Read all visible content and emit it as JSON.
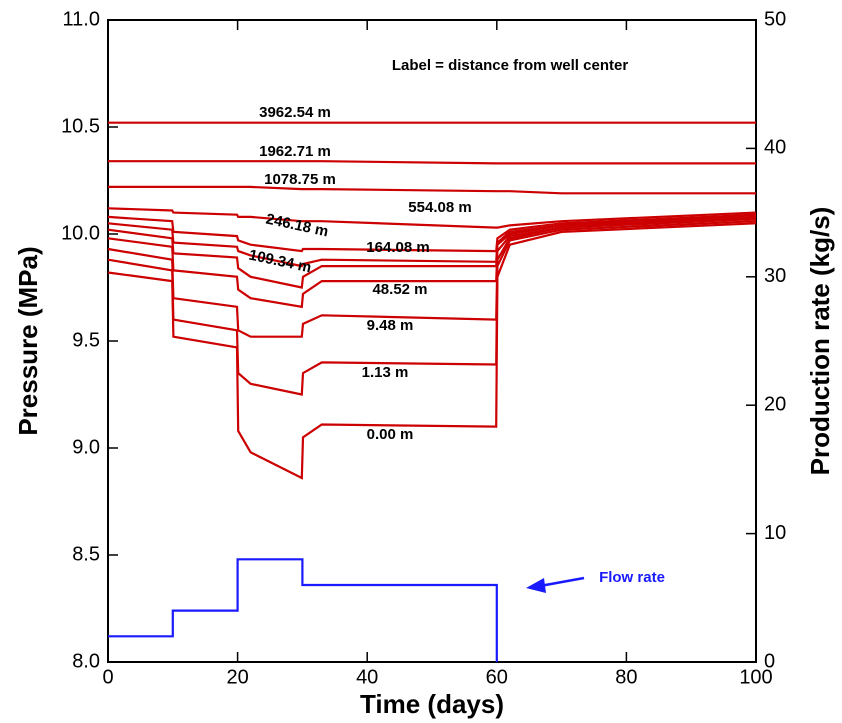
{
  "chart_data": {
    "type": "line",
    "xlabel": "Time (days)",
    "ylabel": "Pressure (MPa)",
    "y2label": "Production rate (kg/s)",
    "annotation": "Label = distance from well center",
    "xlim": [
      0,
      100
    ],
    "xticks": [
      0,
      20,
      40,
      60,
      80,
      100
    ],
    "ylim": [
      8,
      11
    ],
    "yticks": [
      {
        "value": 8,
        "label": "8.0"
      },
      {
        "value": 8.5,
        "label": "8.5"
      },
      {
        "value": 9,
        "label": "9.0"
      },
      {
        "value": 9.5,
        "label": "9.5"
      },
      {
        "value": 10,
        "label": "10.0"
      },
      {
        "value": 10.5,
        "label": "10.5"
      },
      {
        "value": 11,
        "label": "11.0"
      }
    ],
    "y2lim": [
      0,
      50
    ],
    "y2ticks": [
      0,
      10,
      20,
      30,
      40,
      50
    ],
    "series": [
      {
        "name": "3962.54 m",
        "color": "#cc0000",
        "x": [
          0,
          9.9,
          10.1,
          19.9,
          20.1,
          22,
          29.9,
          30.1,
          33,
          59.9,
          60.1,
          62,
          70,
          100
        ],
        "values": [
          10.52,
          10.52,
          10.52,
          10.52,
          10.52,
          10.52,
          10.52,
          10.52,
          10.52,
          10.52,
          10.52,
          10.52,
          10.52,
          10.52
        ]
      },
      {
        "name": "1962.71 m",
        "color": "#cc0000",
        "x": [
          0,
          9.9,
          10.1,
          19.9,
          20.1,
          22,
          29.9,
          30.1,
          33,
          59.9,
          60.1,
          62,
          70,
          100
        ],
        "values": [
          10.34,
          10.34,
          10.34,
          10.34,
          10.34,
          10.34,
          10.34,
          10.34,
          10.34,
          10.33,
          10.33,
          10.33,
          10.33,
          10.33
        ]
      },
      {
        "name": "1078.75 m",
        "color": "#cc0000",
        "x": [
          0,
          9.9,
          10.1,
          19.9,
          20.1,
          22,
          29.9,
          30.1,
          33,
          59.9,
          60.1,
          62,
          70,
          100
        ],
        "values": [
          10.22,
          10.22,
          10.22,
          10.22,
          10.22,
          10.22,
          10.21,
          10.21,
          10.21,
          10.2,
          10.2,
          10.2,
          10.19,
          10.19
        ]
      },
      {
        "name": "554.08 m",
        "color": "#cc0000",
        "x": [
          0,
          9.9,
          10.1,
          19.9,
          20.1,
          22,
          29.9,
          30.1,
          33,
          59.9,
          60.1,
          62,
          70,
          100
        ],
        "values": [
          10.12,
          10.11,
          10.1,
          10.09,
          10.08,
          10.08,
          10.06,
          10.06,
          10.06,
          10.03,
          10.03,
          10.04,
          10.06,
          10.1
        ]
      },
      {
        "name": "246.18 m",
        "color": "#cc0000",
        "x": [
          0,
          9.9,
          10.1,
          19.9,
          20.1,
          22,
          29.9,
          30.1,
          33,
          59.9,
          60.1,
          62,
          70,
          100
        ],
        "values": [
          10.08,
          10.06,
          10.01,
          9.99,
          9.97,
          9.95,
          9.92,
          9.93,
          9.93,
          9.92,
          9.98,
          10.02,
          10.05,
          10.09
        ]
      },
      {
        "name": "164.08 m",
        "color": "#cc0000",
        "x": [
          0,
          9.9,
          10.1,
          19.9,
          20.1,
          22,
          29.9,
          30.1,
          33,
          59.9,
          60.1,
          62,
          70,
          100
        ],
        "values": [
          10.05,
          10.02,
          9.96,
          9.94,
          9.92,
          9.9,
          9.85,
          9.86,
          9.88,
          9.87,
          9.96,
          10.01,
          10.04,
          10.09
        ]
      },
      {
        "name": "109.34 m",
        "color": "#cc0000",
        "x": [
          0,
          9.9,
          10.1,
          19.9,
          20.1,
          22,
          29.9,
          30.1,
          33,
          59.9,
          60.1,
          62,
          70,
          100
        ],
        "values": [
          10.02,
          9.98,
          9.91,
          9.89,
          9.84,
          9.8,
          9.75,
          9.8,
          9.85,
          9.85,
          9.95,
          10.0,
          10.04,
          10.08
        ]
      },
      {
        "name": "48.52 m",
        "color": "#cc0000",
        "x": [
          0,
          9.9,
          10.1,
          19.9,
          20.1,
          22,
          29.9,
          30.1,
          33,
          59.9,
          60.1,
          62,
          70,
          100
        ],
        "values": [
          9.98,
          9.94,
          9.83,
          9.8,
          9.74,
          9.7,
          9.66,
          9.72,
          9.78,
          9.78,
          9.92,
          9.99,
          10.03,
          10.08
        ]
      },
      {
        "name": "9.48 m",
        "color": "#cc0000",
        "x": [
          0,
          9.9,
          10.1,
          19.9,
          20.1,
          22,
          29.9,
          30.1,
          33,
          59.9,
          60.1,
          62,
          70,
          100
        ],
        "values": [
          9.93,
          9.88,
          9.7,
          9.66,
          9.55,
          9.52,
          9.52,
          9.58,
          9.62,
          9.6,
          9.88,
          9.98,
          10.03,
          10.07
        ]
      },
      {
        "name": "1.13 m",
        "color": "#cc0000",
        "x": [
          0,
          9.9,
          10.1,
          19.9,
          20.1,
          22,
          29.9,
          30.1,
          33,
          59.9,
          60.1,
          62,
          70,
          100
        ],
        "values": [
          9.88,
          9.83,
          9.6,
          9.55,
          9.35,
          9.3,
          9.25,
          9.35,
          9.4,
          9.39,
          9.85,
          9.97,
          10.02,
          10.06
        ]
      },
      {
        "name": "0.00 m",
        "color": "#cc0000",
        "x": [
          0,
          9.9,
          10.1,
          19.9,
          20.1,
          22,
          29.9,
          30.1,
          33,
          59.9,
          60.1,
          62,
          70,
          100
        ],
        "values": [
          9.82,
          9.78,
          9.52,
          9.47,
          9.08,
          8.98,
          8.86,
          9.05,
          9.11,
          9.1,
          9.8,
          9.95,
          10.01,
          10.05
        ]
      },
      {
        "name": "Flow rate",
        "color": "#1a1aff",
        "axis": "y2",
        "x": [
          0,
          10,
          10,
          20,
          20,
          30,
          30,
          60,
          60
        ],
        "values": [
          2,
          2,
          4,
          4,
          8,
          8,
          6,
          6,
          0
        ]
      }
    ]
  }
}
